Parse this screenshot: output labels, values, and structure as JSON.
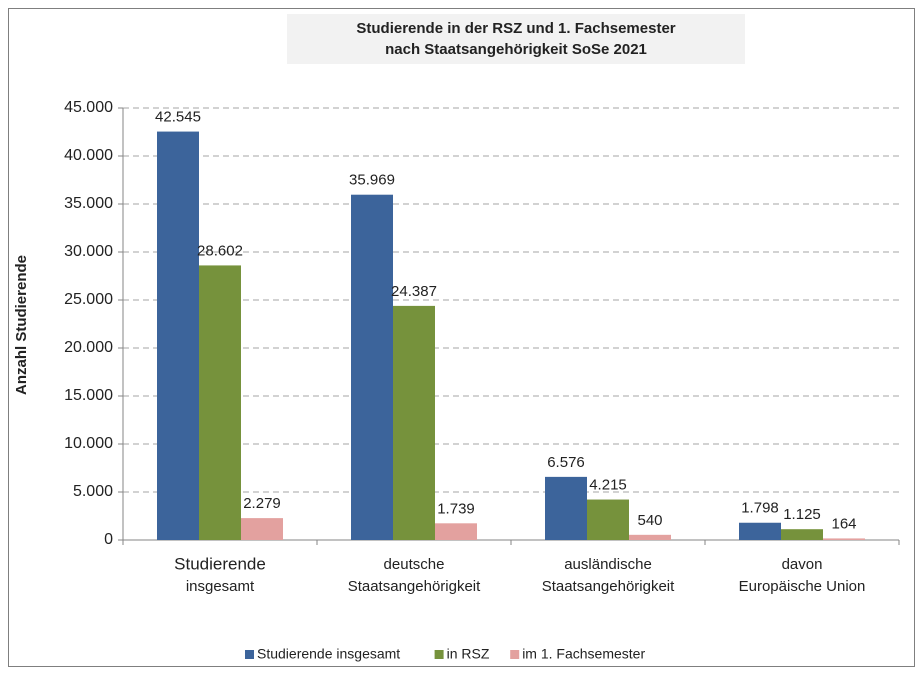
{
  "chart_data": {
    "type": "bar",
    "title": [
      "Studierende in der RSZ und 1. Fachsemester",
      "nach Staatsangehörigkeit  SoSe 2021"
    ],
    "y_label": "Anzahl Studierende",
    "categories": [
      [
        "Studierende",
        "insgesamt"
      ],
      [
        "deutsche",
        "Staatsangehörigkeit"
      ],
      [
        "ausländische",
        "Staatsangehörigkeit"
      ],
      [
        "davon",
        "Europäische Union"
      ]
    ],
    "series": [
      {
        "name": "Studierende insgesamt",
        "color": "#3c649b",
        "values": [
          42545,
          35969,
          6576,
          1798
        ],
        "value_labels": [
          "42.545",
          "35.969",
          "6.576",
          "1.798"
        ]
      },
      {
        "name": "in RSZ",
        "color": "#76923c",
        "values": [
          28602,
          24387,
          4215,
          1125
        ],
        "value_labels": [
          "28.602",
          "24.387",
          "4.215",
          "1.125"
        ]
      },
      {
        "name": "im 1. Fachsemester",
        "color": "#e3a19f",
        "values": [
          2279,
          1739,
          540,
          164
        ],
        "value_labels": [
          "2.279",
          "1.739",
          "540",
          "164"
        ]
      }
    ],
    "ylim": [
      0,
      45000
    ],
    "yticks": [
      0,
      {
        "value": 5000,
        "label": "5.000"
      },
      {
        "value": 10000,
        "label": "10.000"
      },
      {
        "value": 15000,
        "label": "15.000"
      },
      {
        "value": 20000,
        "label": "20.000"
      },
      {
        "value": 25000,
        "label": "25.000"
      },
      {
        "value": 30000,
        "label": "30.000"
      },
      {
        "value": 35000,
        "label": "35.000"
      },
      {
        "value": 40000,
        "label": "40.000"
      },
      {
        "value": 45000,
        "label": "45.000"
      }
    ],
    "grid": true,
    "legend": "bottom"
  }
}
